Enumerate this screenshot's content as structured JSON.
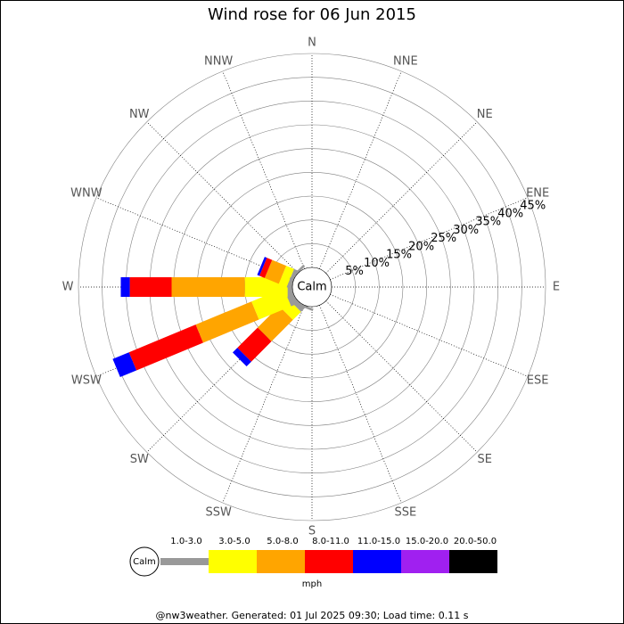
{
  "chart_data": {
    "type": "windrose",
    "title": "Wind rose for 06 Jun 2015",
    "directions": [
      "N",
      "NNE",
      "NE",
      "ENE",
      "E",
      "ESE",
      "SE",
      "SSE",
      "S",
      "SSW",
      "SW",
      "WSW",
      "W",
      "WNW",
      "NW",
      "NNW"
    ],
    "calm_label": "Calm",
    "rlim": [
      0,
      45
    ],
    "rticks": [
      {
        "value": 5,
        "label": "5%"
      },
      {
        "value": 10,
        "label": "10%"
      },
      {
        "value": 15,
        "label": "15%"
      },
      {
        "value": 20,
        "label": "20%"
      },
      {
        "value": 25,
        "label": "25%"
      },
      {
        "value": 30,
        "label": "30%"
      },
      {
        "value": 35,
        "label": "35%"
      },
      {
        "value": 40,
        "label": "40%"
      },
      {
        "value": 45,
        "label": "45%"
      }
    ],
    "series": [
      {
        "name": "1.0-3.0",
        "color": "#999999",
        "values": [
          0,
          0,
          0,
          0,
          0,
          0,
          0,
          0,
          0,
          0.5,
          1.2,
          1.5,
          1.0,
          0.8,
          0.5,
          0
        ]
      },
      {
        "name": "3.0-5.0",
        "color": "#ffff00",
        "values": [
          0,
          0,
          0,
          0,
          0,
          0,
          0,
          0,
          0,
          0,
          2.4,
          7.3,
          9.0,
          1.8,
          0,
          0
        ]
      },
      {
        "name": "5.0-8.0",
        "color": "#ffa500",
        "values": [
          0,
          0,
          0,
          0,
          0,
          0,
          0,
          0,
          0,
          0,
          6.4,
          12.7,
          15.4,
          3.2,
          0,
          0
        ]
      },
      {
        "name": "8.0-11.0",
        "color": "#ff0000",
        "values": [
          0,
          0,
          0,
          0,
          0,
          0,
          0,
          0,
          0,
          0,
          6.0,
          15.2,
          8.8,
          1.2,
          0,
          0
        ]
      },
      {
        "name": "11.0-15.0",
        "color": "#0000ff",
        "values": [
          0,
          0,
          0,
          0,
          0,
          0,
          0,
          0,
          0,
          0,
          1.4,
          3.7,
          1.9,
          0.5,
          0,
          0
        ]
      },
      {
        "name": "15.0-20.0",
        "color": "#a020f0",
        "values": [
          0,
          0,
          0,
          0,
          0,
          0,
          0,
          0,
          0,
          0,
          0,
          0,
          0,
          0,
          0,
          0
        ]
      },
      {
        "name": "20.0-50.0",
        "color": "#000000",
        "values": [
          0,
          0,
          0,
          0,
          0,
          0,
          0,
          0,
          0,
          0,
          0,
          0,
          0,
          0,
          0,
          0
        ]
      }
    ],
    "legend_unit": "mph",
    "footer": "@nw3weather. Generated: 01 Jul 2025 09:30; Load time: 0.11 s"
  }
}
